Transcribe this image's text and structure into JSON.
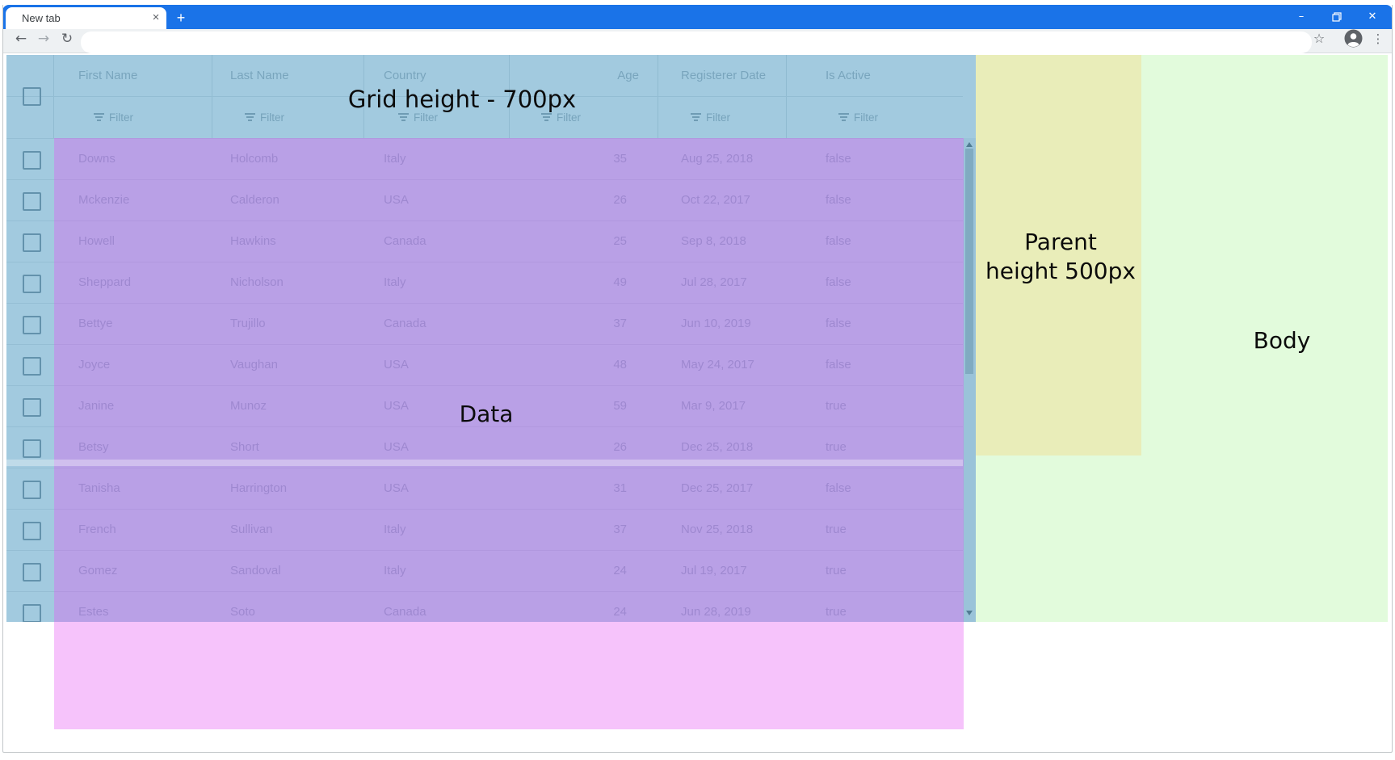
{
  "browser": {
    "tab_title": "New tab",
    "new_tab_button": "+",
    "tab_close": "×",
    "back_icon": "←",
    "forward_icon": "→",
    "reload_icon": "↻",
    "star_icon": "☆",
    "menu_icon": "⋮",
    "minimize": "–",
    "close": "✕",
    "theme_color": "#1a73e8",
    "omnibox_value": ""
  },
  "overlay_labels": {
    "grid": "Grid height - 700px",
    "data": "Data",
    "parent_line1": "Parent",
    "parent_line2": "height 500px",
    "body": "Body"
  },
  "overlay_colors": {
    "grid_overlay": "#3189b8",
    "data_overlay": "#e452f3",
    "parent_region": "#e9edb9",
    "body_region": "#e2fbdc"
  },
  "grid": {
    "filter_label": "Filter",
    "columns": [
      {
        "key": "first-name",
        "label": "First Name"
      },
      {
        "key": "last-name",
        "label": "Last Name"
      },
      {
        "key": "country",
        "label": "Country"
      },
      {
        "key": "age",
        "label": "Age"
      },
      {
        "key": "registerer-date",
        "label": "Registerer Date"
      },
      {
        "key": "is-active",
        "label": "Is Active"
      }
    ],
    "rows": [
      [
        "Downs",
        "Holcomb",
        "Italy",
        "35",
        "Aug 25, 2018",
        "false"
      ],
      [
        "Mckenzie",
        "Calderon",
        "USA",
        "26",
        "Oct 22, 2017",
        "false"
      ],
      [
        "Howell",
        "Hawkins",
        "Canada",
        "25",
        "Sep 8, 2018",
        "false"
      ],
      [
        "Sheppard",
        "Nicholson",
        "Italy",
        "49",
        "Jul 28, 2017",
        "false"
      ],
      [
        "Bettye",
        "Trujillo",
        "Canada",
        "37",
        "Jun 10, 2019",
        "false"
      ],
      [
        "Joyce",
        "Vaughan",
        "USA",
        "48",
        "May 24, 2017",
        "false"
      ],
      [
        "Janine",
        "Munoz",
        "USA",
        "59",
        "Mar 9, 2017",
        "true"
      ],
      [
        "Betsy",
        "Short",
        "USA",
        "26",
        "Dec 25, 2018",
        "true"
      ],
      [
        "Tanisha",
        "Harrington",
        "USA",
        "31",
        "Dec 25, 2017",
        "false"
      ],
      [
        "French",
        "Sullivan",
        "Italy",
        "37",
        "Nov 25, 2018",
        "true"
      ],
      [
        "Gomez",
        "Sandoval",
        "Italy",
        "24",
        "Jul 19, 2017",
        "true"
      ],
      [
        "Estes",
        "Soto",
        "Canada",
        "24",
        "Jun 28, 2019",
        "true"
      ]
    ]
  }
}
